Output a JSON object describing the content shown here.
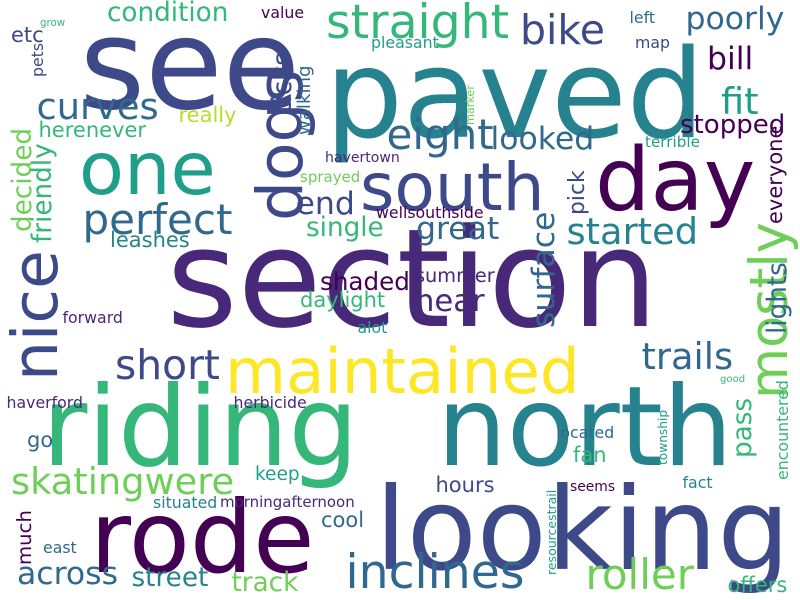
{
  "palette": {
    "p1": "#440154",
    "p2": "#482878",
    "p3": "#3e4989",
    "p4": "#31688e",
    "p5": "#26828e",
    "p6": "#1f9e89",
    "p7": "#35b779",
    "p8": "#6ece58",
    "p9": "#b5de2b",
    "p10": "#fde725"
  },
  "words": [
    {
      "text": "section",
      "color": "#482878"
    },
    {
      "text": "riding",
      "color": "#35b779"
    },
    {
      "text": "north",
      "color": "#26828e"
    },
    {
      "text": "paved",
      "color": "#26828e"
    },
    {
      "text": "see",
      "color": "#3e4989"
    },
    {
      "text": "looking",
      "color": "#3e4989"
    },
    {
      "text": "rode",
      "color": "#440154"
    },
    {
      "text": "day",
      "color": "#440154"
    },
    {
      "text": "one",
      "color": "#1f9e89"
    },
    {
      "text": "maintained",
      "color": "#fde725"
    },
    {
      "text": "south",
      "color": "#3e4989"
    },
    {
      "text": "dogs",
      "color": "#3e4989"
    },
    {
      "text": "nice",
      "color": "#3e4989"
    },
    {
      "text": "inclines",
      "color": "#31688e"
    },
    {
      "text": "straight",
      "color": "#35b779"
    },
    {
      "text": "curves",
      "color": "#31688e"
    },
    {
      "text": "perfect",
      "color": "#31688e"
    },
    {
      "text": "roller",
      "color": "#6ece58"
    },
    {
      "text": "mostly",
      "color": "#6ece58"
    },
    {
      "text": "skatingwere",
      "color": "#6ece58"
    },
    {
      "text": "bike",
      "color": "#3e4989"
    },
    {
      "text": "eight",
      "color": "#31688e"
    },
    {
      "text": "near",
      "color": "#482878"
    },
    {
      "text": "short",
      "color": "#3e4989"
    },
    {
      "text": "trails",
      "color": "#31688e"
    },
    {
      "text": "started",
      "color": "#26828e"
    },
    {
      "text": "bill",
      "color": "#440154"
    },
    {
      "text": "fit",
      "color": "#1f9e89"
    },
    {
      "text": "surface",
      "color": "#31688e"
    },
    {
      "text": "poorly",
      "color": "#31688e"
    },
    {
      "text": "stopped",
      "color": "#440154"
    },
    {
      "text": "looked",
      "color": "#31688e"
    },
    {
      "text": "end",
      "color": "#3e4989"
    },
    {
      "text": "single",
      "color": "#35b779"
    },
    {
      "text": "great",
      "color": "#31688e"
    },
    {
      "text": "condition",
      "color": "#35b779"
    },
    {
      "text": "across",
      "color": "#31688e"
    },
    {
      "text": "street",
      "color": "#26828e"
    },
    {
      "text": "track",
      "color": "#6ece58"
    },
    {
      "text": "herenever",
      "color": "#35b779"
    },
    {
      "text": "shaded",
      "color": "#440154"
    },
    {
      "text": "daylight",
      "color": "#35b779"
    },
    {
      "text": "summer",
      "color": "#482878"
    },
    {
      "text": "ticks",
      "color": "#3e4989"
    },
    {
      "text": "walking",
      "color": "#31688e"
    },
    {
      "text": "really",
      "color": "#b5de2b"
    },
    {
      "text": "decided",
      "color": "#6ece58"
    },
    {
      "text": "friendly",
      "color": "#35b779"
    },
    {
      "text": "leashes",
      "color": "#26828e"
    },
    {
      "text": "lights",
      "color": "#31688e"
    },
    {
      "text": "pass",
      "color": "#35b779"
    },
    {
      "text": "good",
      "color": "#35b779"
    },
    {
      "text": "encountered",
      "color": "#35b779"
    },
    {
      "text": "everyone",
      "color": "#440154"
    },
    {
      "text": "pick",
      "color": "#3e4989"
    },
    {
      "text": "keep",
      "color": "#1f9e89"
    },
    {
      "text": "cool",
      "color": "#31688e"
    },
    {
      "text": "hours",
      "color": "#3e4989"
    },
    {
      "text": "fan",
      "color": "#35b779"
    },
    {
      "text": "go",
      "color": "#31688e"
    },
    {
      "text": "much",
      "color": "#440154"
    },
    {
      "text": "offers",
      "color": "#35b779"
    },
    {
      "text": "etc",
      "color": "#3e4989"
    },
    {
      "text": "pets",
      "color": "#3e4989"
    },
    {
      "text": "grow",
      "color": "#35b779"
    },
    {
      "text": "value",
      "color": "#440154"
    },
    {
      "text": "pleasant",
      "color": "#1f9e89"
    },
    {
      "text": "left",
      "color": "#31688e"
    },
    {
      "text": "map",
      "color": "#3e4989"
    },
    {
      "text": "marker",
      "color": "#6ece58"
    },
    {
      "text": "terrible",
      "color": "#1f9e89"
    },
    {
      "text": "havertown",
      "color": "#482878"
    },
    {
      "text": "sprayed",
      "color": "#6ece58"
    },
    {
      "text": "wellsouthside",
      "color": "#440154"
    },
    {
      "text": "forward",
      "color": "#482878"
    },
    {
      "text": "alot",
      "color": "#1f9e89"
    },
    {
      "text": "haverford",
      "color": "#482878"
    },
    {
      "text": "herbicide",
      "color": "#482878"
    },
    {
      "text": "located",
      "color": "#31688e"
    },
    {
      "text": "township",
      "color": "#1f9e89"
    },
    {
      "text": "resourcestrail",
      "color": "#1f9e89"
    },
    {
      "text": "seems",
      "color": "#440154"
    },
    {
      "text": "fact",
      "color": "#26828e"
    },
    {
      "text": "situated",
      "color": "#26828e"
    },
    {
      "text": "morningafternoon",
      "color": "#482878"
    },
    {
      "text": "east",
      "color": "#31688e"
    }
  ]
}
